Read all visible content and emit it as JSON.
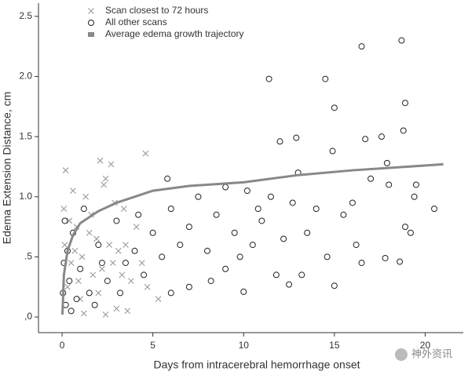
{
  "chart_data": {
    "type": "scatter",
    "xlabel": "Days from intracerebral hemorrhage onset",
    "ylabel": "Edema Extension Distance, cm",
    "annotation": "神外资讯",
    "xlim": [
      -1.3,
      22.1
    ],
    "ylim": [
      -0.13,
      2.61
    ],
    "xticks": [
      0,
      5,
      10,
      15,
      20
    ],
    "yticks": [
      {
        "value": 0,
        "label": ",0"
      },
      {
        "value": 0.5,
        "label": ".5"
      },
      {
        "value": 1,
        "label": "1.0"
      },
      1.5,
      {
        "value": 2,
        "label": "2.0"
      },
      2.5
    ],
    "legend": "upper left",
    "series": [
      {
        "name": "Scan closest to 72 hours",
        "color": "#9a9a9a",
        "marker": "x",
        "x": [
          0.2,
          2.1,
          2.7,
          4.6,
          2.4,
          2.3,
          1.3,
          0.6,
          0.4,
          0.8,
          1.5,
          1.9,
          2.6,
          3.1,
          3.5,
          2.8,
          2.2,
          1.7,
          1.1,
          0.9,
          0.5,
          0.3,
          0.15,
          0.1,
          3.8,
          4.4,
          4.7,
          5.3,
          3.6,
          3.0,
          2.4,
          1.2,
          4.1,
          3.4,
          2.9,
          1.6,
          0.7,
          1.0,
          2.0,
          3.3
        ],
        "values": [
          1.22,
          1.3,
          1.27,
          1.36,
          1.15,
          1.1,
          1.0,
          1.05,
          0.8,
          0.75,
          0.7,
          0.65,
          0.6,
          0.55,
          0.6,
          0.45,
          0.4,
          0.35,
          0.5,
          0.3,
          0.45,
          0.25,
          0.6,
          0.9,
          0.3,
          0.45,
          0.25,
          0.15,
          0.05,
          0.07,
          0.02,
          0.03,
          0.75,
          0.9,
          0.95,
          0.85,
          0.55,
          0.15,
          0.2,
          0.35
        ]
      },
      {
        "name": "All other scans",
        "color": "#222222",
        "marker": "circle",
        "x": [
          16.5,
          18.7,
          11.4,
          14.5,
          18.9,
          15,
          18.8,
          12.9,
          16.7,
          12,
          14.9,
          17.6,
          17.9,
          19.4,
          20.5,
          19.2,
          18.9,
          17.8,
          18.6,
          16.5,
          15,
          12.5,
          11.8,
          10,
          7,
          6,
          9,
          8,
          10.5,
          11,
          12.7,
          13.5,
          14,
          14.6,
          15.5,
          16,
          17,
          18,
          13,
          11.5,
          10.8,
          9.5,
          8.5,
          7.5,
          7,
          6.5,
          6,
          5.5,
          5,
          4.5,
          4,
          3.5,
          3,
          2.5,
          2,
          1.5,
          1.2,
          1,
          0.8,
          0.6,
          0.4,
          0.3,
          0.2,
          0.15,
          0.1,
          0.05,
          0.5,
          1.8,
          2.2,
          3.2,
          8.2,
          9.8,
          12.2,
          13.2,
          16.2,
          19.5,
          10.2,
          9,
          5.8,
          4.2
        ],
        "values": [
          2.25,
          2.3,
          1.98,
          1.98,
          1.78,
          1.74,
          1.55,
          1.49,
          1.48,
          1.46,
          1.38,
          1.5,
          1.28,
          1.0,
          0.9,
          0.7,
          0.75,
          0.49,
          0.46,
          0.45,
          0.26,
          0.27,
          0.35,
          0.21,
          0.25,
          0.2,
          0.4,
          0.55,
          0.6,
          0.8,
          0.95,
          0.7,
          0.9,
          0.5,
          0.85,
          0.95,
          1.15,
          1.1,
          1.2,
          1.0,
          0.9,
          0.7,
          0.85,
          1.0,
          0.75,
          0.6,
          0.9,
          0.5,
          0.7,
          0.35,
          0.55,
          0.45,
          0.8,
          0.3,
          0.6,
          0.2,
          0.9,
          0.4,
          0.15,
          0.7,
          0.3,
          0.55,
          0.1,
          0.8,
          0.45,
          0.2,
          0.05,
          0.1,
          0.45,
          0.2,
          0.3,
          0.5,
          0.65,
          0.35,
          0.6,
          1.1,
          1.05,
          1.08,
          1.15,
          0.85
        ]
      },
      {
        "name": "Average edema growth trajectory",
        "color": "#888888",
        "marker": "line",
        "x": [
          0.02,
          0.1,
          0.3,
          0.6,
          1,
          2,
          3,
          5,
          7,
          10,
          13,
          16,
          19,
          21
        ],
        "values": [
          0.02,
          0.35,
          0.55,
          0.68,
          0.78,
          0.88,
          0.95,
          1.05,
          1.09,
          1.12,
          1.18,
          1.22,
          1.25,
          1.27
        ]
      }
    ]
  }
}
